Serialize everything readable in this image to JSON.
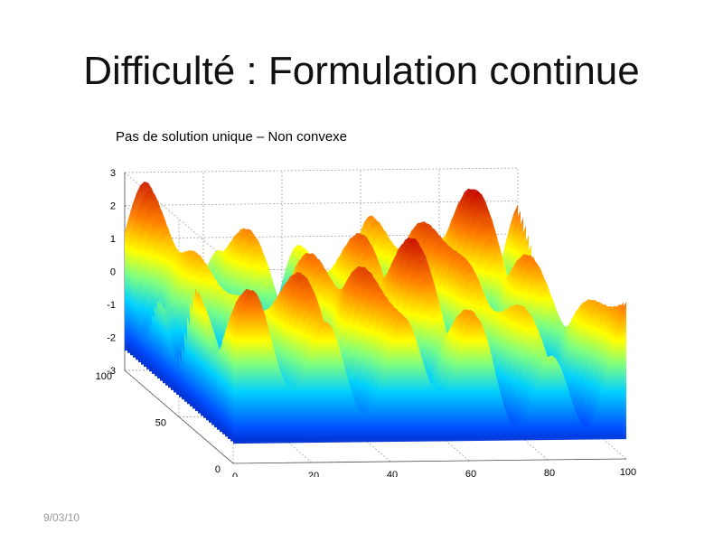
{
  "slide": {
    "title": "Difficulté : Formulation continue",
    "date": "9/03/10"
  },
  "chart_data": {
    "type": "surface",
    "title": "Pas de solution unique – Non convexe",
    "z_ticks": [
      "3",
      "2",
      "1",
      "0",
      "-1",
      "-2",
      "-3"
    ],
    "x_ticks": [
      "0",
      "20",
      "40",
      "60",
      "80",
      "100"
    ],
    "y_ticks": [
      "0",
      "50",
      "100"
    ],
    "xlim": [
      0,
      100
    ],
    "ylim": [
      0,
      100
    ],
    "zlim": [
      -3,
      3
    ],
    "grid": true,
    "colormap": "jet"
  }
}
